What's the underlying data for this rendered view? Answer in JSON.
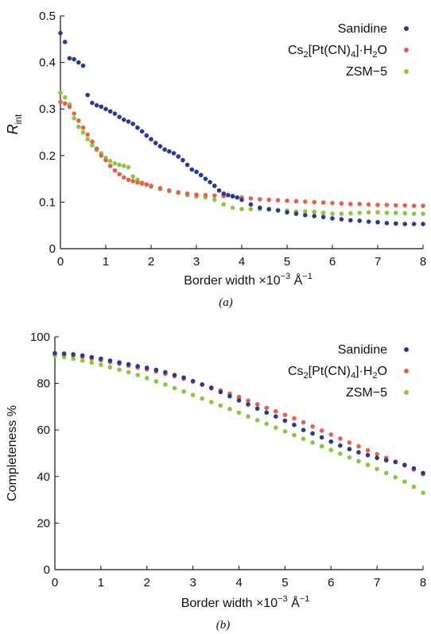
{
  "colors": {
    "sanidine": "#2b3990",
    "cs": "#e8604c",
    "zsm": "#8cc63f",
    "axis": "#111111"
  },
  "chart_data": [
    {
      "type": "scatter",
      "panel_label": "(a)",
      "xlabel": "Border width ×10",
      "xlabel_exp": "−3",
      "xlabel_unit": " Å",
      "xlabel_unit_exp": "−1",
      "ylabel": "R",
      "ylabel_sub": "int",
      "xlim": [
        0,
        8
      ],
      "ylim": [
        0,
        0.5
      ],
      "x_ticks": [
        "0",
        "1",
        "2",
        "3",
        "4",
        "5",
        "6",
        "7",
        "8"
      ],
      "y_ticks": [
        "0",
        "0.1",
        "0.2",
        "0.3",
        "0.4",
        "0.5"
      ],
      "legend_position": "top-right",
      "series": [
        {
          "name": "Sanidine",
          "legend": [
            "Sanidine"
          ],
          "x": [
            0,
            0.1,
            0.2,
            0.3,
            0.4,
            0.5,
            0.6,
            0.7,
            0.8,
            0.9,
            1.0,
            1.1,
            1.2,
            1.3,
            1.4,
            1.5,
            1.6,
            1.7,
            1.8,
            1.9,
            2.0,
            2.1,
            2.2,
            2.3,
            2.4,
            2.5,
            2.6,
            2.7,
            2.8,
            2.9,
            3.0,
            3.1,
            3.2,
            3.3,
            3.4,
            3.5,
            3.6,
            3.7,
            3.8,
            3.9,
            4.0,
            4.2,
            4.4,
            4.6,
            4.8,
            5.0,
            5.2,
            5.4,
            5.6,
            5.8,
            6.0,
            6.2,
            6.4,
            6.6,
            6.8,
            7.0,
            7.2,
            7.4,
            7.6,
            7.8,
            8.0
          ],
          "y": [
            0.463,
            0.444,
            0.409,
            0.407,
            0.4,
            0.393,
            0.33,
            0.313,
            0.308,
            0.305,
            0.3,
            0.295,
            0.29,
            0.283,
            0.277,
            0.273,
            0.268,
            0.26,
            0.252,
            0.243,
            0.235,
            0.227,
            0.22,
            0.213,
            0.209,
            0.205,
            0.198,
            0.19,
            0.18,
            0.17,
            0.165,
            0.158,
            0.15,
            0.143,
            0.135,
            0.125,
            0.118,
            0.115,
            0.113,
            0.11,
            0.105,
            0.095,
            0.088,
            0.085,
            0.082,
            0.078,
            0.075,
            0.072,
            0.07,
            0.068,
            0.065,
            0.063,
            0.061,
            0.06,
            0.058,
            0.057,
            0.055,
            0.054,
            0.053,
            0.053,
            0.053
          ]
        },
        {
          "name": "Cs2[Pt(CN)4]·H2O",
          "legend": [
            "Cs",
            "2",
            "[Pt(CN)",
            "4",
            "]·H",
            "2",
            "O"
          ],
          "x": [
            0,
            0.1,
            0.2,
            0.3,
            0.4,
            0.5,
            0.6,
            0.7,
            0.8,
            0.9,
            1.0,
            1.1,
            1.2,
            1.3,
            1.4,
            1.5,
            1.6,
            1.7,
            1.8,
            1.9,
            2.0,
            2.2,
            2.4,
            2.6,
            2.8,
            3.0,
            3.2,
            3.4,
            3.6,
            3.8,
            4.0,
            4.2,
            4.4,
            4.6,
            4.8,
            5.0,
            5.2,
            5.4,
            5.6,
            5.8,
            6.0,
            6.2,
            6.4,
            6.6,
            6.8,
            7.0,
            7.2,
            7.4,
            7.6,
            7.8,
            8.0
          ],
          "y": [
            0.315,
            0.312,
            0.305,
            0.29,
            0.275,
            0.26,
            0.245,
            0.23,
            0.215,
            0.2,
            0.19,
            0.178,
            0.168,
            0.16,
            0.153,
            0.148,
            0.145,
            0.142,
            0.14,
            0.138,
            0.135,
            0.13,
            0.125,
            0.121,
            0.118,
            0.116,
            0.115,
            0.114,
            0.113,
            0.112,
            0.11,
            0.108,
            0.106,
            0.105,
            0.104,
            0.103,
            0.102,
            0.101,
            0.1,
            0.099,
            0.098,
            0.097,
            0.096,
            0.096,
            0.095,
            0.094,
            0.094,
            0.093,
            0.093,
            0.092,
            0.092
          ]
        },
        {
          "name": "ZSM-5",
          "legend": [
            "ZSM−5"
          ],
          "x": [
            0,
            0.1,
            0.2,
            0.3,
            0.4,
            0.5,
            0.6,
            0.7,
            0.8,
            0.9,
            1.0,
            1.1,
            1.2,
            1.3,
            1.4,
            1.5,
            1.6,
            1.7,
            1.8,
            1.9,
            2.0,
            2.2,
            2.4,
            2.6,
            2.8,
            3.0,
            3.2,
            3.4,
            3.6,
            3.8,
            4.0,
            4.2,
            4.4,
            4.6,
            4.8,
            5.0,
            5.2,
            5.4,
            5.6,
            5.8,
            6.0,
            6.2,
            6.4,
            6.6,
            6.8,
            7.0,
            7.2,
            7.4,
            7.6,
            7.8,
            8.0
          ],
          "y": [
            0.335,
            0.325,
            0.31,
            0.28,
            0.262,
            0.25,
            0.235,
            0.222,
            0.212,
            0.205,
            0.195,
            0.188,
            0.183,
            0.18,
            0.178,
            0.175,
            0.155,
            0.148,
            0.142,
            0.138,
            0.133,
            0.128,
            0.124,
            0.12,
            0.115,
            0.112,
            0.11,
            0.105,
            0.095,
            0.088,
            0.085,
            0.085,
            0.085,
            0.084,
            0.083,
            0.082,
            0.08,
            0.08,
            0.079,
            0.077,
            0.075,
            0.075,
            0.076,
            0.077,
            0.078,
            0.078,
            0.077,
            0.077,
            0.076,
            0.075,
            0.075
          ]
        }
      ]
    },
    {
      "type": "scatter",
      "panel_label": "(b)",
      "xlabel": "Border width ×10",
      "xlabel_exp": "−3",
      "xlabel_unit": " Å",
      "xlabel_unit_exp": "−1",
      "ylabel": "Completeness %",
      "ylabel_sub": "",
      "xlim": [
        0,
        8
      ],
      "ylim": [
        0,
        100
      ],
      "x_ticks": [
        "0",
        "1",
        "2",
        "3",
        "4",
        "5",
        "6",
        "7",
        "8"
      ],
      "y_ticks": [
        "0",
        "20",
        "40",
        "60",
        "80",
        "100"
      ],
      "legend_position": "top-right",
      "series": [
        {
          "name": "Sanidine",
          "legend": [
            "Sanidine"
          ],
          "x": [
            0,
            0.2,
            0.4,
            0.6,
            0.8,
            1.0,
            1.2,
            1.4,
            1.6,
            1.8,
            2.0,
            2.2,
            2.4,
            2.6,
            2.8,
            3.0,
            3.2,
            3.4,
            3.6,
            3.8,
            4.0,
            4.2,
            4.4,
            4.6,
            4.8,
            5.0,
            5.2,
            5.4,
            5.6,
            5.8,
            6.0,
            6.2,
            6.4,
            6.6,
            6.8,
            7.0,
            7.2,
            7.4,
            7.6,
            7.8,
            8.0
          ],
          "y": [
            93,
            92.8,
            92.5,
            92,
            91.3,
            90.6,
            89.8,
            89,
            88.2,
            87.4,
            86.7,
            85.8,
            84.8,
            83.6,
            82.5,
            81,
            79.5,
            78,
            76.3,
            74.5,
            72.7,
            71,
            69.2,
            67.5,
            65.8,
            64,
            62.2,
            60,
            58.5,
            56.8,
            55,
            53.3,
            51.8,
            50.4,
            49.2,
            48,
            47,
            46.2,
            45,
            43.5,
            41.5
          ]
        },
        {
          "name": "Cs2[Pt(CN)4]·H2O",
          "legend": [
            "Cs",
            "2",
            "[Pt(CN)",
            "4",
            "]·H",
            "2",
            "O"
          ],
          "x": [
            0,
            0.2,
            0.4,
            0.6,
            0.8,
            1.0,
            1.2,
            1.4,
            1.6,
            1.8,
            2.0,
            2.2,
            2.4,
            2.6,
            2.8,
            3.0,
            3.2,
            3.4,
            3.6,
            3.8,
            4.0,
            4.2,
            4.4,
            4.6,
            4.8,
            5.0,
            5.2,
            5.4,
            5.6,
            5.8,
            6.0,
            6.2,
            6.4,
            6.6,
            6.8,
            7.0,
            7.2,
            7.4,
            7.6,
            7.8,
            8.0
          ],
          "y": [
            92.8,
            92.5,
            92,
            91.4,
            90.7,
            90,
            89.2,
            88.4,
            87.6,
            86.8,
            86,
            85.1,
            84.1,
            83.1,
            82,
            80.8,
            79.6,
            78.3,
            77,
            75.6,
            74.2,
            72.6,
            71,
            69.5,
            68,
            66.5,
            65,
            63.3,
            61.5,
            59.7,
            58,
            56.3,
            54.6,
            53,
            51.3,
            49.6,
            48,
            46.4,
            44.8,
            43,
            41
          ]
        },
        {
          "name": "ZSM-5",
          "legend": [
            "ZSM−5"
          ],
          "x": [
            0,
            0.2,
            0.4,
            0.6,
            0.8,
            1.0,
            1.2,
            1.4,
            1.6,
            1.8,
            2.0,
            2.2,
            2.4,
            2.6,
            2.8,
            3.0,
            3.2,
            3.4,
            3.6,
            3.8,
            4.0,
            4.2,
            4.4,
            4.6,
            4.8,
            5.0,
            5.2,
            5.4,
            5.6,
            5.8,
            6.0,
            6.2,
            6.4,
            6.6,
            6.8,
            7.0,
            7.2,
            7.4,
            7.6,
            7.8,
            8.0
          ],
          "y": [
            92,
            91.3,
            90.6,
            89.8,
            88.9,
            88,
            87,
            85.9,
            84.8,
            83.6,
            82.3,
            80.9,
            79.5,
            78,
            76.5,
            75,
            73.5,
            72,
            70.5,
            69,
            67.4,
            65.8,
            64.2,
            62.6,
            61,
            59.4,
            57.8,
            56.2,
            54.6,
            53,
            51.4,
            49.8,
            48.2,
            46.6,
            45,
            43.2,
            41.5,
            39.7,
            37.8,
            35.6,
            33
          ]
        }
      ]
    }
  ]
}
